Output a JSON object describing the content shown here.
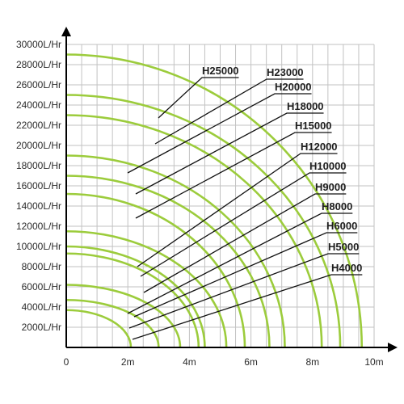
{
  "chart_data": {
    "type": "line",
    "title": "",
    "xlabel": "",
    "ylabel": "",
    "xlim": [
      0,
      10
    ],
    "ylim": [
      0,
      30000
    ],
    "x_ticks": [
      "0",
      "2m",
      "4m",
      "6m",
      "8m",
      "10m"
    ],
    "y_ticks": [
      "2000L/Hr",
      "4000L/Hr",
      "6000L/Hr",
      "8000L/Hr",
      "10000L/Hr",
      "12000L/Hr",
      "14000L/Hr",
      "16000L/Hr",
      "18000L/Hr",
      "20000L/Hr",
      "22000L/Hr",
      "24000L/Hr",
      "26000L/Hr",
      "28000L/Hr",
      "30000L/Hr"
    ],
    "grid": true,
    "line_color": "#9ccc3c",
    "series": [
      {
        "name": "H25000",
        "max_flow": 29000,
        "max_head": 9.6
      },
      {
        "name": "H23000",
        "max_flow": 25000,
        "max_head": 8.9
      },
      {
        "name": "H20000",
        "max_flow": 23000,
        "max_head": 8.3
      },
      {
        "name": "H18000",
        "max_flow": 19000,
        "max_head": 7.1
      },
      {
        "name": "H15000",
        "max_flow": 17000,
        "max_head": 6.6
      },
      {
        "name": "H12000",
        "max_flow": 15200,
        "max_head": 5.8
      },
      {
        "name": "H10000",
        "max_flow": 11500,
        "max_head": 5.2
      },
      {
        "name": "H9000",
        "max_flow": 10000,
        "max_head": 4.5
      },
      {
        "name": "H8000",
        "max_flow": 9300,
        "max_head": 4.3
      },
      {
        "name": "H6000",
        "max_flow": 6200,
        "max_head": 3.7
      },
      {
        "name": "H5000",
        "max_flow": 4700,
        "max_head": 3.0
      },
      {
        "name": "H4000",
        "max_flow": 3700,
        "max_head": 2.1
      }
    ]
  }
}
